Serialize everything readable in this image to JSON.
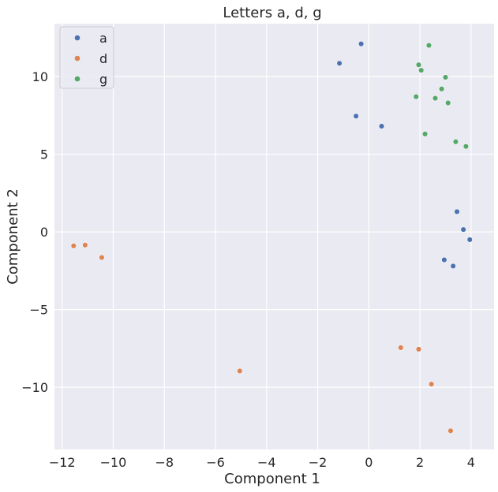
{
  "chart_data": {
    "type": "scatter",
    "title": "Letters a, d, g",
    "xlabel": "Component 1",
    "ylabel": "Component 2",
    "xlim": [
      -12.3,
      4.9
    ],
    "ylim": [
      -14.0,
      13.4
    ],
    "xticks": [
      -12,
      -10,
      -8,
      -6,
      -4,
      -2,
      0,
      2,
      4
    ],
    "xtick_labels": [
      "−12",
      "−10",
      "−8",
      "−6",
      "−4",
      "−2",
      "0",
      "2",
      "4"
    ],
    "yticks": [
      -10,
      -5,
      0,
      5,
      10
    ],
    "ytick_labels": [
      "−10",
      "−5",
      "0",
      "5",
      "10"
    ],
    "grid": true,
    "background": "#eaeaf2",
    "legend_position": "top-left",
    "series": [
      {
        "name": "a",
        "color": "#4c72b0",
        "points": [
          [
            -1.15,
            10.85
          ],
          [
            -0.3,
            12.1
          ],
          [
            -0.5,
            7.45
          ],
          [
            0.5,
            6.8
          ],
          [
            3.45,
            1.3
          ],
          [
            3.7,
            0.15
          ],
          [
            3.95,
            -0.5
          ],
          [
            2.95,
            -1.8
          ],
          [
            3.3,
            -2.2
          ]
        ]
      },
      {
        "name": "d",
        "color": "#dd8452",
        "points": [
          [
            -11.55,
            -0.9
          ],
          [
            -11.1,
            -0.85
          ],
          [
            -10.45,
            -1.65
          ],
          [
            -5.05,
            -8.95
          ],
          [
            1.25,
            -7.45
          ],
          [
            1.95,
            -7.55
          ],
          [
            2.45,
            -9.8
          ],
          [
            3.2,
            -12.8
          ]
        ]
      },
      {
        "name": "g",
        "color": "#55a868",
        "points": [
          [
            2.35,
            12.0
          ],
          [
            1.95,
            10.75
          ],
          [
            2.05,
            10.4
          ],
          [
            3.0,
            9.95
          ],
          [
            2.85,
            9.2
          ],
          [
            1.85,
            8.7
          ],
          [
            2.6,
            8.6
          ],
          [
            3.1,
            8.3
          ],
          [
            2.2,
            6.3
          ],
          [
            3.4,
            5.8
          ],
          [
            3.8,
            5.5
          ]
        ]
      }
    ]
  }
}
